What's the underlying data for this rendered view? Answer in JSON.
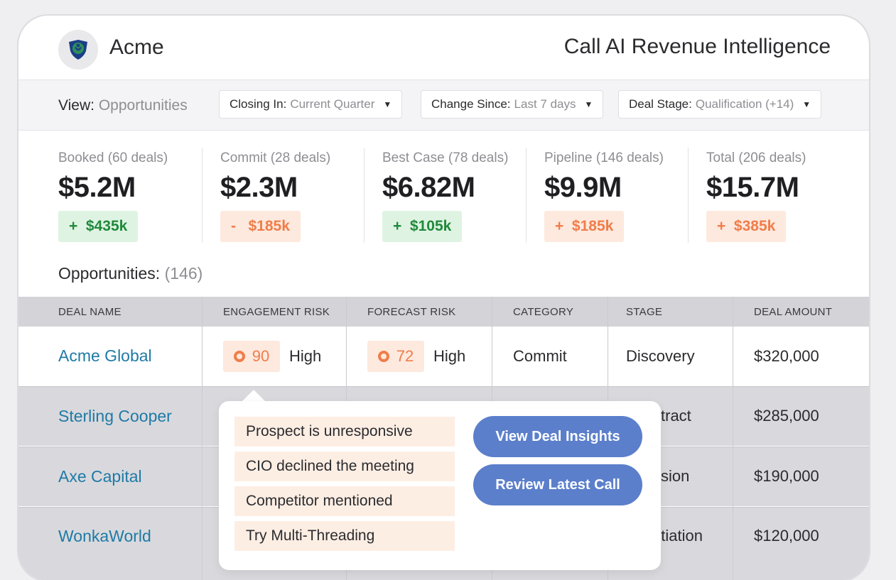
{
  "header": {
    "brand": "Acme",
    "app_title": "Call AI Revenue Intelligence",
    "logo_icon": "shield-logo-icon"
  },
  "filters": {
    "view_label": "View:",
    "view_value": "Opportunities",
    "dropdowns": [
      {
        "label": "Closing In:",
        "value": "Current Quarter"
      },
      {
        "label": "Change Since:",
        "value": "Last 7 days"
      },
      {
        "label": "Deal Stage:",
        "value": "Qualification (+14)"
      }
    ]
  },
  "stats": [
    {
      "label": "Booked (60 deals)",
      "value": "$5.2M",
      "delta": "+  $435k",
      "trend": "up"
    },
    {
      "label": "Commit (28 deals)",
      "value": "$2.3M",
      "delta": "-   $185k",
      "trend": "down"
    },
    {
      "label": "Best Case (78 deals)",
      "value": "$6.82M",
      "delta": "+  $105k",
      "trend": "up"
    },
    {
      "label": "Pipeline (146 deals)",
      "value": "$9.9M",
      "delta": "+  $185k",
      "trend": "down"
    },
    {
      "label": "Total (206 deals)",
      "value": "$15.7M",
      "delta": "+  $385k",
      "trend": "down"
    }
  ],
  "opportunities": {
    "title": "Opportunities:",
    "count": "(146)"
  },
  "table": {
    "headers": [
      "DEAL NAME",
      "ENGAGEMENT RISK",
      "FORECAST RISK",
      "CATEGORY",
      "STAGE",
      "DEAL AMOUNT"
    ],
    "rows": [
      {
        "deal": "Acme Global",
        "engagement_score": "90",
        "engagement_level": "High",
        "forecast_score": "72",
        "forecast_level": "High",
        "category": "Commit",
        "stage": "Discovery",
        "amount": "$320,000"
      },
      {
        "deal": "Sterling Cooper",
        "stage": "tract",
        "amount": "$285,000"
      },
      {
        "deal": "Axe Capital",
        "stage": "sion",
        "amount": "$190,000"
      },
      {
        "deal": "WonkaWorld",
        "stage": "otiation",
        "amount": "$120,000"
      }
    ]
  },
  "popover": {
    "insights": [
      "Prospect is unresponsive",
      "CIO declined the meeting",
      "Competitor mentioned",
      "Try Multi-Threading"
    ],
    "view_insights_label": "View Deal Insights",
    "review_call_label": "Review Latest Call"
  },
  "colors": {
    "accent_link": "#1e7aa6",
    "button_blue": "#5b7fcb",
    "positive": "#1f8a3b",
    "warning": "#f07d4a"
  }
}
